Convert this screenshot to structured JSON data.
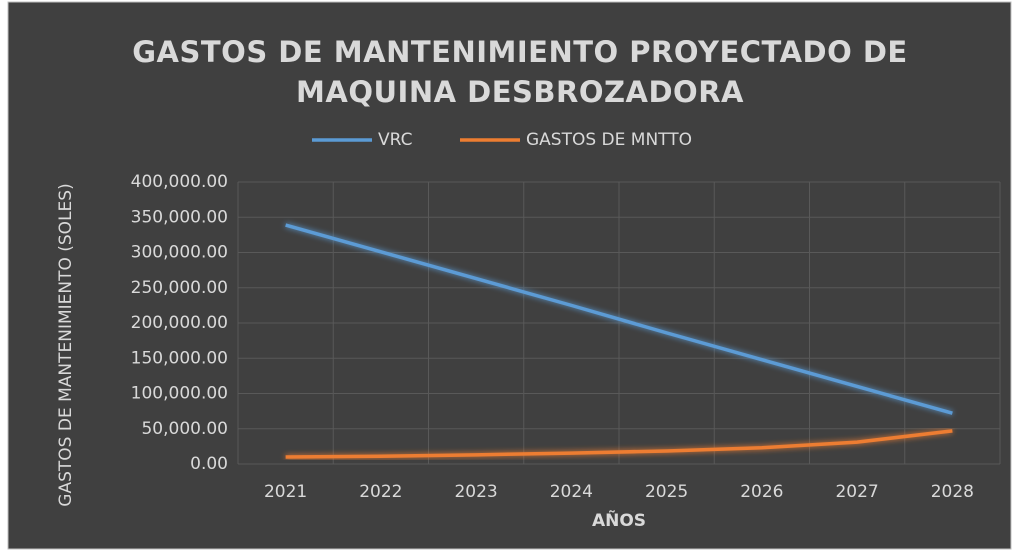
{
  "chart_data": {
    "type": "line",
    "title": "GASTOS DE MANTENIMIENTO PROYECTADO DE MAQUINA DESBROZADORA",
    "x_label": "AÑOS",
    "y_label": "GASTOS DE MANTENIMIENTO (SOLES)",
    "categories": [
      "2021",
      "2022",
      "2023",
      "2024",
      "2025",
      "2026",
      "2027",
      "2028"
    ],
    "series": [
      {
        "name": "VRC",
        "color": "#5b9bd5",
        "values": [
          339000,
          301000,
          263000,
          225000,
          186000,
          148000,
          110000,
          72000
        ]
      },
      {
        "name": "GASTOS DE MNTTO",
        "color": "#ed7d31",
        "values": [
          10000,
          11000,
          13000,
          15500,
          18500,
          23000,
          31000,
          47000
        ]
      }
    ],
    "ylim": [
      0,
      400000
    ],
    "yticks": [
      {
        "value": 0,
        "label": "0.00"
      },
      {
        "value": 50000,
        "label": "50,000.00"
      },
      {
        "value": 100000,
        "label": "100,000.00"
      },
      {
        "value": 150000,
        "label": "150,000.00"
      },
      {
        "value": 200000,
        "label": "200,000.00"
      },
      {
        "value": 250000,
        "label": "250,000.00"
      },
      {
        "value": 300000,
        "label": "300,000.00"
      },
      {
        "value": 350000,
        "label": "350,000.00"
      },
      {
        "value": 400000,
        "label": "400,000.00"
      }
    ],
    "grid": true,
    "legend": "top"
  }
}
